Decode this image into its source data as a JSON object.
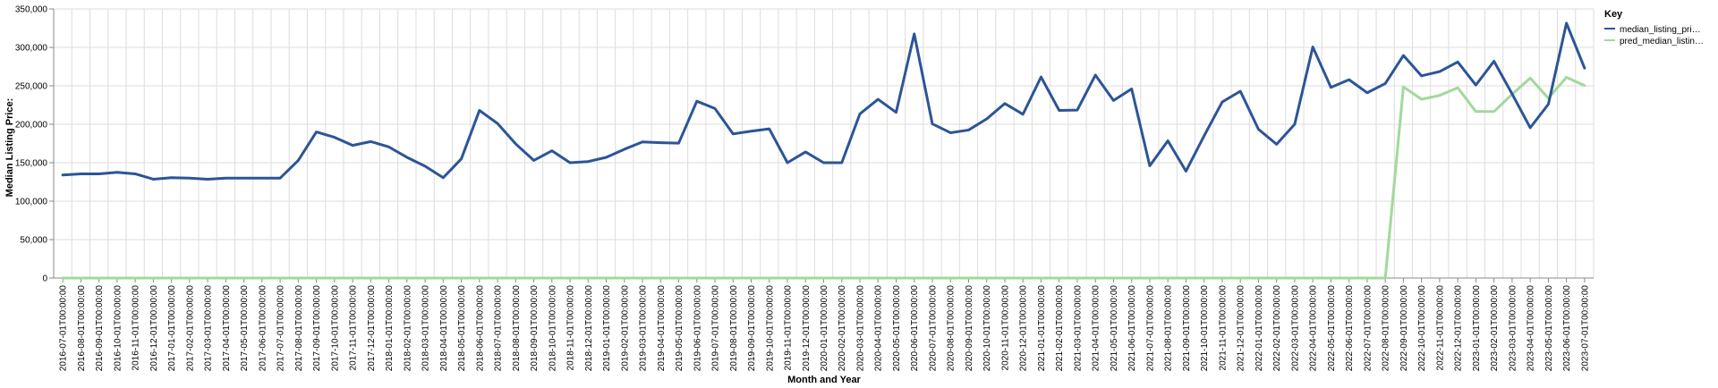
{
  "chart_data": {
    "type": "line",
    "xlabel": "Month and Year",
    "ylabel": "Median Listing Price:",
    "ylim": [
      0,
      350000
    ],
    "yticks": [
      "0",
      "50,000",
      "100,000",
      "150,000",
      "200,000",
      "250,000",
      "300,000",
      "350,000"
    ],
    "grid": true,
    "legend": {
      "title": "Key",
      "placement": "right"
    },
    "colors": {
      "median_listing_price": "#2c5597",
      "pred_median_listing_price": "#a1d99b"
    },
    "x": [
      "2016-07-01T00:00:00",
      "2016-08-01T00:00:00",
      "2016-09-01T00:00:00",
      "2016-10-01T00:00:00",
      "2016-11-01T00:00:00",
      "2016-12-01T00:00:00",
      "2017-01-01T00:00:00",
      "2017-02-01T00:00:00",
      "2017-03-01T00:00:00",
      "2017-04-01T00:00:00",
      "2017-05-01T00:00:00",
      "2017-06-01T00:00:00",
      "2017-07-01T00:00:00",
      "2017-08-01T00:00:00",
      "2017-09-01T00:00:00",
      "2017-10-01T00:00:00",
      "2017-11-01T00:00:00",
      "2017-12-01T00:00:00",
      "2018-01-01T00:00:00",
      "2018-02-01T00:00:00",
      "2018-03-01T00:00:00",
      "2018-04-01T00:00:00",
      "2018-05-01T00:00:00",
      "2018-06-01T00:00:00",
      "2018-07-01T00:00:00",
      "2018-08-01T00:00:00",
      "2018-09-01T00:00:00",
      "2018-10-01T00:00:00",
      "2018-11-01T00:00:00",
      "2018-12-01T00:00:00",
      "2019-01-01T00:00:00",
      "2019-02-01T00:00:00",
      "2019-03-01T00:00:00",
      "2019-04-01T00:00:00",
      "2019-05-01T00:00:00",
      "2019-06-01T00:00:00",
      "2019-07-01T00:00:00",
      "2019-08-01T00:00:00",
      "2019-09-01T00:00:00",
      "2019-10-01T00:00:00",
      "2019-11-01T00:00:00",
      "2019-12-01T00:00:00",
      "2020-01-01T00:00:00",
      "2020-02-01T00:00:00",
      "2020-03-01T00:00:00",
      "2020-04-01T00:00:00",
      "2020-05-01T00:00:00",
      "2020-06-01T00:00:00",
      "2020-07-01T00:00:00",
      "2020-08-01T00:00:00",
      "2020-09-01T00:00:00",
      "2020-10-01T00:00:00",
      "2020-11-01T00:00:00",
      "2020-12-01T00:00:00",
      "2021-01-01T00:00:00",
      "2021-02-01T00:00:00",
      "2021-03-01T00:00:00",
      "2021-04-01T00:00:00",
      "2021-05-01T00:00:00",
      "2021-06-01T00:00:00",
      "2021-07-01T00:00:00",
      "2021-08-01T00:00:00",
      "2021-09-01T00:00:00",
      "2021-10-01T00:00:00",
      "2021-11-01T00:00:00",
      "2021-12-01T00:00:00",
      "2022-01-01T00:00:00",
      "2022-02-01T00:00:00",
      "2022-03-01T00:00:00",
      "2022-04-01T00:00:00",
      "2022-05-01T00:00:00",
      "2022-06-01T00:00:00",
      "2022-07-01T00:00:00",
      "2022-08-01T00:00:00",
      "2022-09-01T00:00:00",
      "2022-10-01T00:00:00",
      "2022-11-01T00:00:00",
      "2022-12-01T00:00:00",
      "2023-01-01T00:00:00",
      "2023-02-01T00:00:00",
      "2023-03-01T00:00:00",
      "2023-04-01T00:00:00",
      "2023-05-01T00:00:00",
      "2023-06-01T00:00:00",
      "2023-07-01T00:00:00"
    ],
    "series": [
      {
        "name": "median_listing_pri…",
        "values": [
          134000,
          135500,
          135500,
          137500,
          135500,
          128500,
          130500,
          130000,
          128500,
          130000,
          130000,
          130000,
          130000,
          153000,
          190000,
          183000,
          172500,
          177500,
          170500,
          157000,
          145500,
          130500,
          155000,
          218000,
          201000,
          174500,
          153000,
          165500,
          150000,
          151500,
          157000,
          167500,
          177000,
          176000,
          175500,
          230000,
          220500,
          187500,
          191000,
          194000,
          150000,
          164000,
          150000,
          150000,
          213500,
          232500,
          215500,
          317500,
          200500,
          189000,
          192500,
          207000,
          227000,
          213000,
          261500,
          218000,
          218500,
          264000,
          231000,
          246000,
          146000,
          178500,
          139000,
          185000,
          229000,
          243000,
          193500,
          174000,
          200000,
          300500,
          248000,
          258000,
          241000,
          253000,
          289500,
          263000,
          268500,
          281000,
          251000,
          282000,
          239500,
          195500,
          226000,
          331500,
          273000
        ]
      },
      {
        "name": "pred_median_listin…",
        "values": [
          0,
          0,
          0,
          0,
          0,
          0,
          0,
          0,
          0,
          0,
          0,
          0,
          0,
          0,
          0,
          0,
          0,
          0,
          0,
          0,
          0,
          0,
          0,
          0,
          0,
          0,
          0,
          0,
          0,
          0,
          0,
          0,
          0,
          0,
          0,
          0,
          0,
          0,
          0,
          0,
          0,
          0,
          0,
          0,
          0,
          0,
          0,
          0,
          0,
          0,
          0,
          0,
          0,
          0,
          0,
          0,
          0,
          0,
          0,
          0,
          0,
          0,
          0,
          0,
          0,
          0,
          0,
          0,
          0,
          0,
          0,
          0,
          0,
          0,
          248500,
          232500,
          237500,
          247500,
          216500,
          216500,
          239000,
          260000,
          234000,
          261000,
          250500
        ]
      }
    ]
  }
}
